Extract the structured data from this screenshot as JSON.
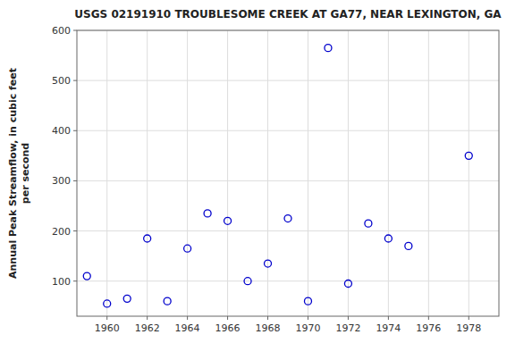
{
  "chart_data": {
    "type": "scatter",
    "title": "USGS 02191910 TROUBLESOME CREEK AT GA77, NEAR LEXINGTON, GA",
    "ylabel": "Annual Peak Streamflow, in cubic feet\nper second",
    "x": [
      1959,
      1960,
      1961,
      1962,
      1963,
      1964,
      1965,
      1966,
      1967,
      1968,
      1969,
      1970,
      1971,
      1972,
      1973,
      1974,
      1975,
      1978
    ],
    "values": [
      110,
      55,
      65,
      185,
      60,
      165,
      235,
      220,
      100,
      135,
      225,
      60,
      565,
      95,
      215,
      185,
      170,
      350
    ],
    "xlim": [
      1958.5,
      1979.5
    ],
    "ylim": [
      30,
      600
    ],
    "xticks": [
      1960,
      1962,
      1964,
      1966,
      1968,
      1970,
      1972,
      1974,
      1976,
      1978
    ],
    "yticks": [
      100,
      200,
      300,
      400,
      500,
      600
    ],
    "color": "#0000CC",
    "marker": "circle",
    "grid": true
  }
}
